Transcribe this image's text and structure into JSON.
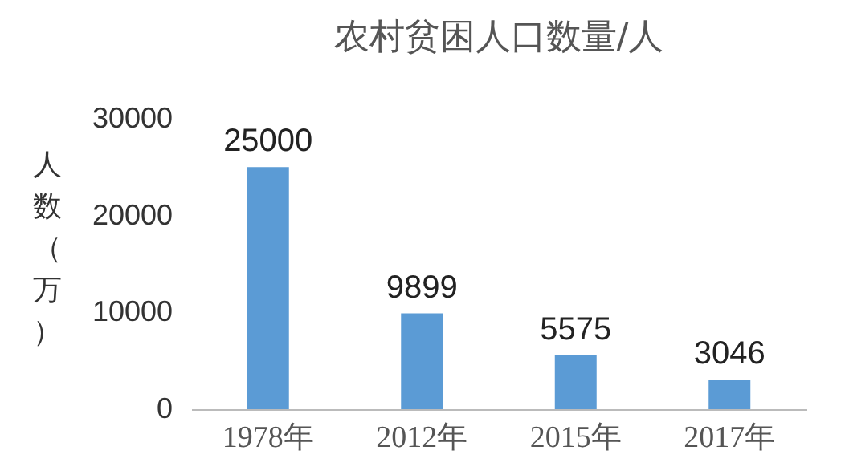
{
  "chart_data": {
    "type": "bar",
    "title": "农村贫困人口数量/人",
    "ylabel": "人数（万）",
    "categories": [
      "1978年",
      "2012年",
      "2015年",
      "2017年"
    ],
    "values": [
      25000,
      9899,
      5575,
      3046
    ],
    "color": "#5b9bd5",
    "ylim": [
      0,
      30000
    ],
    "yticks": [
      0,
      10000,
      20000,
      30000
    ],
    "grid": false,
    "data_labels": true
  }
}
